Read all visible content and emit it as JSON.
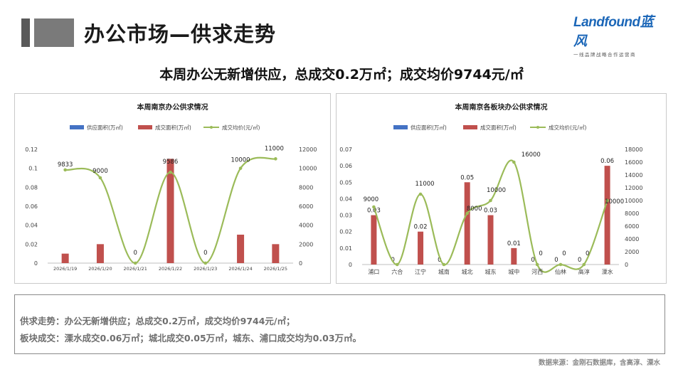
{
  "page_title": "办公市场—供求走势",
  "logo": {
    "name": "Landfound蓝风",
    "tagline": "一线品牌战略合作运营商"
  },
  "headline": "本周办公无新增供应，总成交0.2万㎡；成交均价9744元/㎡",
  "colors": {
    "supply": "#4472c4",
    "deal": "#c0504d",
    "price": "#9bbb59"
  },
  "chart_data": [
    {
      "type": "bar",
      "title": "本周南京办公供求情况",
      "legend": [
        "供应面积(万㎡)",
        "成交面积(万㎡)",
        "成交均价(元/㎡)"
      ],
      "categories": [
        "2026/1/19",
        "2026/1/20",
        "2026/1/21",
        "2026/1/22",
        "2026/1/23",
        "2026/1/24",
        "2026/1/25"
      ],
      "series": [
        {
          "name": "供应面积(万㎡)",
          "axis": "left",
          "values": [
            0,
            0,
            0,
            0,
            0,
            0,
            0
          ]
        },
        {
          "name": "成交面积(万㎡)",
          "axis": "left",
          "values": [
            0.01,
            0.02,
            0,
            0.11,
            0,
            0.03,
            0.02
          ]
        },
        {
          "name": "成交均价(元/㎡)",
          "axis": "right",
          "type": "line",
          "values": [
            9833,
            9000,
            0,
            9586,
            0,
            10000,
            11000
          ]
        }
      ],
      "y_left": {
        "min": 0,
        "max": 0.12,
        "ticks": [
          "0",
          "0.02",
          "0.04",
          "0.06",
          "0.08",
          "0.1",
          "0.12"
        ]
      },
      "y_right": {
        "min": 0,
        "max": 12000,
        "ticks": [
          "0",
          "2000",
          "4000",
          "6000",
          "8000",
          "10000",
          "12000"
        ]
      },
      "price_labels": [
        "9833",
        "9000",
        "0",
        "9586",
        "0",
        "10000",
        "11000"
      ],
      "legend_position": "top",
      "grid": false
    },
    {
      "type": "bar",
      "title": "本周南京各板块办公供求情况",
      "legend": [
        "供应面积(万㎡)",
        "成交面积(万㎡)",
        "成交均价(元/㎡)"
      ],
      "categories": [
        "浦口",
        "六合",
        "江宁",
        "城南",
        "城北",
        "城东",
        "城中",
        "河西",
        "仙林",
        "高淳",
        "溧水"
      ],
      "series": [
        {
          "name": "供应面积(万㎡)",
          "axis": "left",
          "values": [
            0,
            0,
            0,
            0,
            0,
            0,
            0,
            0,
            0,
            0,
            0
          ]
        },
        {
          "name": "成交面积(万㎡)",
          "axis": "left",
          "values": [
            0.03,
            0,
            0.02,
            0,
            0.05,
            0.03,
            0.01,
            0,
            0,
            0,
            0.06
          ]
        },
        {
          "name": "成交均价(元/㎡)",
          "axis": "right",
          "type": "line",
          "values": [
            9000,
            0,
            11000,
            0,
            8000,
            10000,
            16000,
            0,
            0,
            0,
            10000
          ]
        }
      ],
      "y_left": {
        "min": 0,
        "max": 0.07,
        "ticks": [
          "0",
          "0.01",
          "0.02",
          "0.03",
          "0.04",
          "0.05",
          "0.06",
          "0.07"
        ]
      },
      "y_right": {
        "min": 0,
        "max": 18000,
        "ticks": [
          "0",
          "2000",
          "4000",
          "6000",
          "8000",
          "10000",
          "12000",
          "14000",
          "16000",
          "18000"
        ]
      },
      "bar_labels": [
        "0.03",
        "0",
        "0.02",
        "0",
        "0.05",
        "0.03",
        "0.01",
        "0",
        "0",
        "0",
        "0.06"
      ],
      "price_labels": [
        "9000",
        "",
        "11000",
        "",
        "8000",
        "10000",
        "16000",
        "0",
        "0",
        "0",
        "10000"
      ],
      "legend_position": "top",
      "grid": false
    }
  ],
  "summary": {
    "line1": "供求走势：办公无新增供应；总成交0.2万㎡，成交均价9744元/㎡；",
    "line2": "板块成交：溧水成交0.06万㎡；城北成交0.05万㎡，城东、浦口成交均为0.03万㎡。"
  },
  "source": "数据来源：金刚石数据库，含高淳、溧水"
}
